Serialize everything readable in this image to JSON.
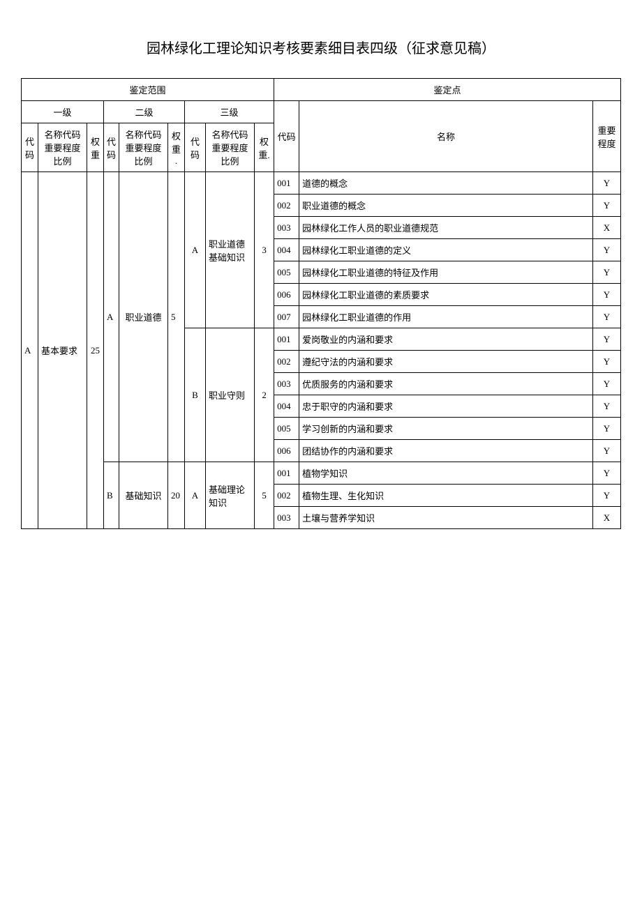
{
  "title": "园林绿化工理论知识考核要素细目表四级（征求意见稿）",
  "headers": {
    "scope": "鉴定范围",
    "points": "鉴定点",
    "level1": "一级",
    "level2": "二级",
    "level3": "三级",
    "code": "代码",
    "name_l": "名称代码重要程度比例",
    "weight": "权重",
    "weight_dot": "权重.",
    "p_code": "代码",
    "p_name": "名称",
    "p_importance": "重要程度"
  },
  "table": {
    "l1_code": "A",
    "l1_name": "基本要求",
    "l1_weight": "25",
    "l2_groups": [
      {
        "code": "A",
        "name": "职业道德",
        "weight": "5",
        "l3_groups": [
          {
            "code": "A",
            "name": "职业道德基础知识",
            "weight": "3",
            "points": [
              {
                "code": "001",
                "name": "道德的概念",
                "imp": "Y"
              },
              {
                "code": "002",
                "name": "职业道德的概念",
                "imp": "Y"
              },
              {
                "code": "003",
                "name": "园林绿化工作人员的职业道德规范",
                "imp": "X"
              },
              {
                "code": "004",
                "name": "园林绿化工职业道德的定义",
                "imp": "Y"
              },
              {
                "code": "005",
                "name": "园林绿化工职业道德的特征及作用",
                "imp": "Y"
              },
              {
                "code": "006",
                "name": "园林绿化工职业道德的素质要求",
                "imp": "Y"
              },
              {
                "code": "007",
                "name": "园林绿化工职业道德的作用",
                "imp": "Y"
              }
            ]
          },
          {
            "code": "B",
            "name": "职业守则",
            "weight": "2",
            "points": [
              {
                "code": "001",
                "name": "爱岗敬业的内涵和要求",
                "imp": "Y"
              },
              {
                "code": "002",
                "name": "遵纪守法的内涵和要求",
                "imp": "Y"
              },
              {
                "code": "003",
                "name": "优质服务的内涵和要求",
                "imp": "Y"
              },
              {
                "code": "004",
                "name": "忠于职守的内涵和要求",
                "imp": "Y"
              },
              {
                "code": "005",
                "name": "学习创新的内涵和要求",
                "imp": "Y"
              },
              {
                "code": "006",
                "name": "团结协作的内涵和要求",
                "imp": "Y"
              }
            ]
          }
        ]
      },
      {
        "code": "B",
        "name": "基础知识",
        "weight": "20",
        "l3_groups": [
          {
            "code": "A",
            "name": "基础理论知识",
            "weight": "5",
            "points": [
              {
                "code": "001",
                "name": "植物学知识",
                "imp": "Y"
              },
              {
                "code": "002",
                "name": "植物生理、生化知识",
                "imp": "Y"
              },
              {
                "code": "003",
                "name": "土壤与营养学知识",
                "imp": "X"
              }
            ]
          }
        ]
      }
    ]
  }
}
